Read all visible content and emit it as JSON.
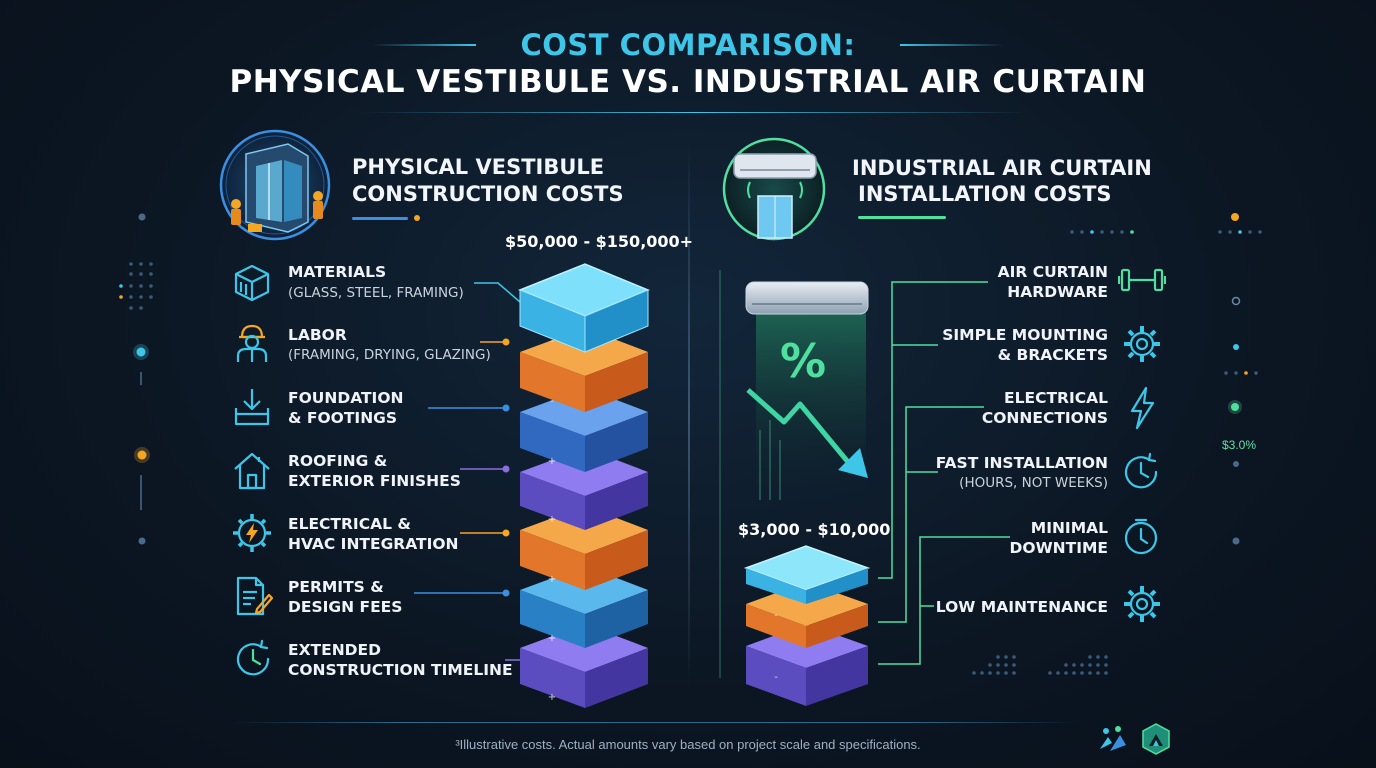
{
  "title": {
    "line1": "COST COMPARISON:",
    "line2": "PHYSICAL VESTIBULE VS. INDUSTRIAL AIR CURTAIN"
  },
  "left": {
    "heading_line1": "PHYSICAL VESTIBULE",
    "heading_line2": "CONSTRUCTION COSTS",
    "range": "$50,000 - $150,000+",
    "items": [
      {
        "label": "MATERIALS",
        "sub": "(GLASS, STEEL, FRAMING)",
        "icon": "box-icon",
        "color": "#3ec6e8"
      },
      {
        "label": "LABOR",
        "sub": "(FRAMING, DRYING, GLAZING)",
        "icon": "worker-icon",
        "color": "#f5a623"
      },
      {
        "label": "FOUNDATION",
        "sub": "& FOOTINGS",
        "icon": "foundation-icon",
        "color": "#3b8fe0"
      },
      {
        "label": "ROOFING &",
        "sub": "EXTERIOR FINISHES",
        "icon": "house-icon",
        "color": "#8a6ee0"
      },
      {
        "label": "ELECTRICAL &",
        "sub": "HVAC INTEGRATION",
        "icon": "electric-gear-icon",
        "color": "#f5a623"
      },
      {
        "label": "PERMITS &",
        "sub": "DESIGN FEES",
        "icon": "document-icon",
        "color": "#3b8fe0"
      },
      {
        "label": "EXTENDED",
        "sub": "CONSTRUCTION TIMELINE",
        "icon": "clock-icon",
        "color": "#8a6ee0"
      }
    ]
  },
  "right": {
    "heading_line1": "INDUSTRIAL AIR CURTAIN",
    "heading_line2": "INSTALLATION COSTS",
    "range": "$3,000 - $10,000",
    "percent_symbol": "%",
    "items": [
      {
        "label": "AIR CURTAIN",
        "sub": "HARDWARE",
        "icon": "dumbbell-icon"
      },
      {
        "label": "SIMPLE MOUNTING",
        "sub": "& BRACKETS",
        "icon": "gear-icon"
      },
      {
        "label": "ELECTRICAL",
        "sub": "CONNECTIONS",
        "icon": "lightning-icon"
      },
      {
        "label": "FAST INSTALLATION",
        "sub": "(HOURS, NOT WEEKS)",
        "icon": "clock-icon"
      },
      {
        "label": "MINIMAL",
        "sub": "DOWNTIME",
        "icon": "clock-icon"
      },
      {
        "label": "LOW MAINTENANCE",
        "sub": "",
        "icon": "gear-icon"
      }
    ]
  },
  "side_stat": "$3.0%",
  "footnote": "³Illustrative costs. Actual amounts vary based on project scale and specifications.",
  "colors": {
    "accent_cyan": "#3ec6e8",
    "orange": "#f5a623",
    "blue": "#3b8fe0",
    "purple": "#8a6ee0",
    "green": "#4fe0a0"
  }
}
